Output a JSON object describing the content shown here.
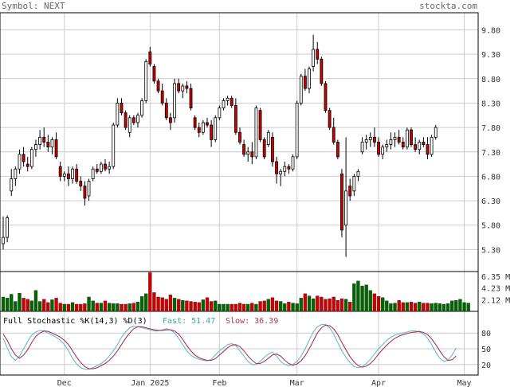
{
  "header": {
    "symbol_label": "Symbol: NEXT",
    "site_label": "stockta.com"
  },
  "colors": {
    "up": "#ffffff",
    "down": "#cc0000",
    "vol_up": "#006600",
    "vol_down": "#cc0000",
    "grid": "#cccccc",
    "fast": "#66bbcc",
    "slow": "#aa3355",
    "fast_label": "#33aa99",
    "slow_label": "#aa3366"
  },
  "chart_data": [
    {
      "type": "candlestick",
      "name": "price",
      "y_ticks": [
        "5.30",
        "5.80",
        "6.30",
        "6.80",
        "7.30",
        "7.80",
        "8.30",
        "8.80",
        "9.30",
        "9.80"
      ],
      "y_tick_values": [
        5.3,
        5.8,
        6.3,
        6.8,
        7.3,
        7.8,
        8.3,
        8.8,
        9.3,
        9.8
      ],
      "ylim": [
        4.85,
        10.15
      ],
      "x_labels": [
        {
          "label": "Dec",
          "index": 15
        },
        {
          "label": "Jan 2025",
          "index": 36
        },
        {
          "label": "Feb",
          "index": 53
        },
        {
          "label": "Mar",
          "index": 72
        },
        {
          "label": "Apr",
          "index": 92
        },
        {
          "label": "May",
          "index": 113
        }
      ],
      "grid": true,
      "ohlc": [
        [
          5.42,
          5.98,
          5.3,
          5.55
        ],
        [
          5.55,
          6.0,
          5.45,
          5.95
        ],
        [
          6.5,
          6.95,
          6.4,
          6.75
        ],
        [
          6.75,
          7.0,
          6.6,
          6.95
        ],
        [
          6.95,
          7.35,
          6.85,
          7.25
        ],
        [
          7.25,
          7.4,
          7.0,
          7.1
        ],
        [
          7.05,
          7.2,
          6.9,
          7.0
        ],
        [
          7.0,
          7.4,
          6.95,
          7.35
        ],
        [
          7.35,
          7.55,
          7.2,
          7.45
        ],
        [
          7.45,
          7.75,
          7.35,
          7.6
        ],
        [
          7.6,
          7.8,
          7.4,
          7.5
        ],
        [
          7.5,
          7.65,
          7.3,
          7.4
        ],
        [
          7.4,
          7.6,
          7.25,
          7.55
        ],
        [
          7.55,
          7.7,
          7.15,
          7.2
        ],
        [
          7.0,
          7.1,
          6.7,
          6.8
        ],
        [
          6.8,
          6.9,
          6.7,
          6.85
        ],
        [
          6.85,
          7.0,
          6.6,
          6.75
        ],
        [
          6.75,
          7.0,
          6.65,
          6.95
        ],
        [
          6.95,
          7.05,
          6.65,
          6.7
        ],
        [
          6.7,
          6.8,
          6.5,
          6.6
        ],
        [
          6.6,
          6.7,
          6.2,
          6.35
        ],
        [
          6.4,
          6.75,
          6.3,
          6.7
        ],
        [
          6.75,
          7.0,
          6.7,
          6.95
        ],
        [
          6.95,
          7.05,
          6.85,
          6.9
        ],
        [
          6.9,
          7.1,
          6.85,
          7.05
        ],
        [
          7.05,
          7.15,
          6.9,
          6.95
        ],
        [
          6.95,
          7.1,
          6.85,
          7.0
        ],
        [
          7.0,
          7.9,
          6.95,
          7.85
        ],
        [
          7.85,
          8.4,
          7.8,
          8.3
        ],
        [
          8.3,
          8.4,
          8.05,
          8.1
        ],
        [
          8.1,
          8.15,
          7.75,
          7.8
        ],
        [
          7.7,
          8.05,
          7.6,
          8.0
        ],
        [
          8.0,
          8.05,
          7.85,
          7.9
        ],
        [
          7.9,
          8.1,
          7.8,
          8.05
        ],
        [
          8.05,
          8.4,
          8.0,
          8.35
        ],
        [
          8.35,
          9.2,
          8.3,
          9.15
        ],
        [
          9.35,
          9.45,
          9.05,
          9.1
        ],
        [
          9.05,
          9.1,
          8.7,
          8.75
        ],
        [
          8.75,
          8.8,
          8.5,
          8.55
        ],
        [
          8.55,
          8.7,
          8.25,
          8.3
        ],
        [
          8.3,
          8.4,
          7.95,
          8.0
        ],
        [
          8.0,
          8.1,
          7.75,
          7.9
        ],
        [
          8.0,
          8.8,
          7.9,
          8.7
        ],
        [
          8.7,
          8.8,
          8.5,
          8.55
        ],
        [
          8.55,
          8.7,
          8.4,
          8.65
        ],
        [
          8.65,
          8.75,
          8.5,
          8.6
        ],
        [
          8.6,
          8.7,
          8.15,
          8.2
        ],
        [
          8.0,
          8.05,
          7.75,
          7.8
        ],
        [
          7.8,
          7.9,
          7.6,
          7.7
        ],
        [
          7.7,
          7.95,
          7.65,
          7.9
        ],
        [
          7.9,
          8.0,
          7.8,
          7.85
        ],
        [
          7.85,
          7.95,
          7.4,
          7.55
        ],
        [
          7.55,
          8.05,
          7.5,
          8.0
        ],
        [
          8.0,
          8.25,
          7.95,
          8.2
        ],
        [
          8.2,
          8.4,
          8.15,
          8.35
        ],
        [
          8.35,
          8.45,
          8.25,
          8.4
        ],
        [
          8.4,
          8.45,
          8.2,
          8.25
        ],
        [
          8.25,
          8.4,
          7.65,
          7.7
        ],
        [
          7.7,
          7.8,
          7.45,
          7.5
        ],
        [
          7.45,
          7.55,
          7.2,
          7.25
        ],
        [
          7.25,
          7.4,
          7.1,
          7.3
        ],
        [
          7.3,
          7.5,
          7.05,
          7.2
        ],
        [
          7.2,
          8.25,
          7.15,
          8.2
        ],
        [
          8.15,
          8.2,
          7.5,
          7.55
        ],
        [
          7.55,
          7.6,
          7.15,
          7.2
        ],
        [
          7.45,
          7.75,
          7.4,
          7.7
        ],
        [
          7.6,
          7.7,
          7.0,
          7.1
        ],
        [
          7.1,
          7.2,
          6.65,
          6.85
        ],
        [
          6.85,
          6.95,
          6.6,
          6.9
        ],
        [
          6.9,
          7.1,
          6.8,
          7.0
        ],
        [
          7.0,
          7.05,
          6.85,
          6.95
        ],
        [
          6.95,
          7.25,
          6.9,
          7.2
        ],
        [
          7.2,
          8.35,
          7.15,
          8.3
        ],
        [
          8.3,
          8.9,
          8.25,
          8.85
        ],
        [
          8.85,
          9.0,
          8.55,
          8.6
        ],
        [
          8.6,
          9.05,
          8.5,
          9.0
        ],
        [
          9.05,
          9.7,
          8.95,
          9.4
        ],
        [
          9.4,
          9.55,
          9.1,
          9.2
        ],
        [
          9.2,
          9.25,
          8.65,
          8.7
        ],
        [
          8.7,
          8.75,
          8.1,
          8.15
        ],
        [
          8.15,
          8.2,
          7.75,
          7.8
        ],
        [
          7.8,
          8.0,
          7.45,
          7.5
        ],
        [
          7.5,
          7.55,
          7.15,
          7.2
        ],
        [
          6.85,
          6.95,
          5.55,
          5.7
        ],
        [
          5.8,
          7.6,
          5.15,
          6.5
        ],
        [
          6.6,
          6.75,
          6.3,
          6.4
        ],
        [
          6.5,
          6.85,
          6.4,
          6.8
        ],
        [
          6.8,
          6.95,
          6.7,
          6.9
        ],
        [
          7.3,
          7.6,
          7.25,
          7.5
        ],
        [
          7.5,
          7.65,
          7.35,
          7.55
        ],
        [
          7.55,
          7.7,
          7.4,
          7.6
        ],
        [
          7.6,
          7.8,
          7.4,
          7.5
        ],
        [
          7.5,
          7.6,
          7.2,
          7.25
        ],
        [
          7.25,
          7.45,
          7.15,
          7.4
        ],
        [
          7.4,
          7.55,
          7.3,
          7.45
        ],
        [
          7.45,
          7.7,
          7.35,
          7.55
        ],
        [
          7.55,
          7.7,
          7.4,
          7.6
        ],
        [
          7.6,
          7.75,
          7.45,
          7.5
        ],
        [
          7.5,
          7.6,
          7.35,
          7.4
        ],
        [
          7.4,
          7.8,
          7.35,
          7.75
        ],
        [
          7.75,
          7.8,
          7.4,
          7.45
        ],
        [
          7.45,
          7.6,
          7.3,
          7.35
        ],
        [
          7.35,
          7.55,
          7.25,
          7.5
        ],
        [
          7.5,
          7.6,
          7.4,
          7.45
        ],
        [
          7.45,
          7.6,
          7.15,
          7.25
        ],
        [
          7.25,
          7.65,
          7.2,
          7.6
        ],
        [
          7.6,
          7.85,
          7.55,
          7.8
        ]
      ]
    },
    {
      "type": "bar",
      "name": "volume",
      "y_ticks": [
        "6.35 M",
        "4.23 M",
        "2.12 M"
      ],
      "y_tick_values": [
        6.35,
        4.23,
        2.12
      ],
      "ylim": [
        0,
        7.2
      ],
      "values": [
        2.6,
        2.4,
        3.1,
        1.8,
        3.3,
        2.4,
        2.2,
        1.9,
        3.8,
        1.8,
        2.2,
        1.6,
        2.1,
        2.4,
        1.5,
        1.3,
        1.3,
        1.6,
        1.3,
        1.3,
        1.4,
        2.6,
        1.9,
        1.5,
        1.5,
        1.9,
        1.5,
        1.4,
        1.4,
        1.3,
        1.3,
        1.4,
        1.5,
        1.7,
        2.7,
        3.2,
        7.0,
        3.4,
        2.6,
        2.5,
        2.2,
        3.0,
        2.4,
        2.2,
        2.0,
        1.9,
        1.8,
        1.7,
        1.6,
        2.1,
        2.5,
        1.8,
        1.9,
        1.3,
        1.3,
        1.3,
        1.3,
        1.3,
        1.5,
        1.3,
        1.3,
        1.5,
        1.3,
        1.8,
        1.9,
        2.2,
        2.5,
        1.9,
        1.8,
        1.4,
        1.7,
        1.5,
        1.4,
        2.4,
        3.2,
        2.8,
        2.3,
        2.8,
        2.6,
        2.2,
        2.3,
        2.6,
        2.0,
        2.3,
        2.2,
        1.7,
        5.0,
        5.5,
        4.6,
        4.8,
        3.8,
        3.2,
        2.7,
        2.5,
        1.9,
        1.4,
        1.5,
        2.0,
        1.6,
        1.6,
        1.7,
        1.5,
        1.7,
        1.5,
        1.5,
        1.4,
        1.5,
        1.4,
        1.3,
        1.4,
        1.9,
        2.0,
        2.2,
        1.6,
        1.5
      ]
    },
    {
      "type": "line",
      "name": "stochastic",
      "title_label": "Full Stochastic %K(14,3) %D(3)",
      "fast_label": "Fast: 51.47",
      "slow_label": "Slow: 36.39",
      "y_ticks": [
        "80",
        "50",
        "20"
      ],
      "y_tick_values": [
        80,
        50,
        20
      ],
      "ylim": [
        0,
        100
      ],
      "series": [
        {
          "name": "Fast",
          "values": [
            70,
            52,
            35,
            28,
            36,
            50,
            64,
            76,
            82,
            85,
            84,
            80,
            76,
            72,
            66,
            58,
            46,
            32,
            21,
            14,
            11,
            11,
            14,
            18,
            22,
            28,
            36,
            46,
            58,
            72,
            82,
            90,
            93,
            92,
            90,
            88,
            86,
            84,
            84,
            86,
            88,
            86,
            80,
            70,
            58,
            46,
            38,
            33,
            30,
            28,
            27,
            30,
            38,
            46,
            52,
            58,
            60,
            56,
            46,
            36,
            26,
            20,
            20,
            26,
            34,
            40,
            44,
            36,
            26,
            20,
            18,
            20,
            26,
            36,
            50,
            66,
            82,
            92,
            96,
            96,
            90,
            78,
            62,
            46,
            34,
            24,
            16,
            14,
            16,
            22,
            30,
            40,
            50,
            58,
            66,
            72,
            76,
            78,
            80,
            82,
            84,
            84,
            82,
            78,
            70,
            58,
            44,
            32,
            26,
            28,
            38,
            51.47
          ]
        },
        {
          "name": "Slow",
          "values": [
            78,
            66,
            50,
            38,
            32,
            38,
            48,
            62,
            74,
            80,
            84,
            83,
            80,
            76,
            72,
            66,
            58,
            46,
            34,
            24,
            16,
            12,
            12,
            14,
            18,
            22,
            28,
            36,
            46,
            58,
            70,
            80,
            88,
            92,
            92,
            90,
            88,
            86,
            85,
            85,
            86,
            86,
            84,
            78,
            68,
            56,
            46,
            38,
            33,
            30,
            28,
            28,
            31,
            38,
            45,
            52,
            57,
            58,
            54,
            46,
            36,
            28,
            22,
            22,
            26,
            32,
            38,
            40,
            36,
            28,
            22,
            19,
            21,
            27,
            37,
            50,
            65,
            80,
            90,
            95,
            94,
            88,
            77,
            62,
            48,
            35,
            25,
            18,
            15,
            17,
            22,
            30,
            40,
            49,
            57,
            64,
            70,
            74,
            77,
            79,
            81,
            82,
            83,
            81,
            77,
            69,
            58,
            46,
            35,
            28,
            29,
            36.39
          ]
        }
      ]
    }
  ]
}
